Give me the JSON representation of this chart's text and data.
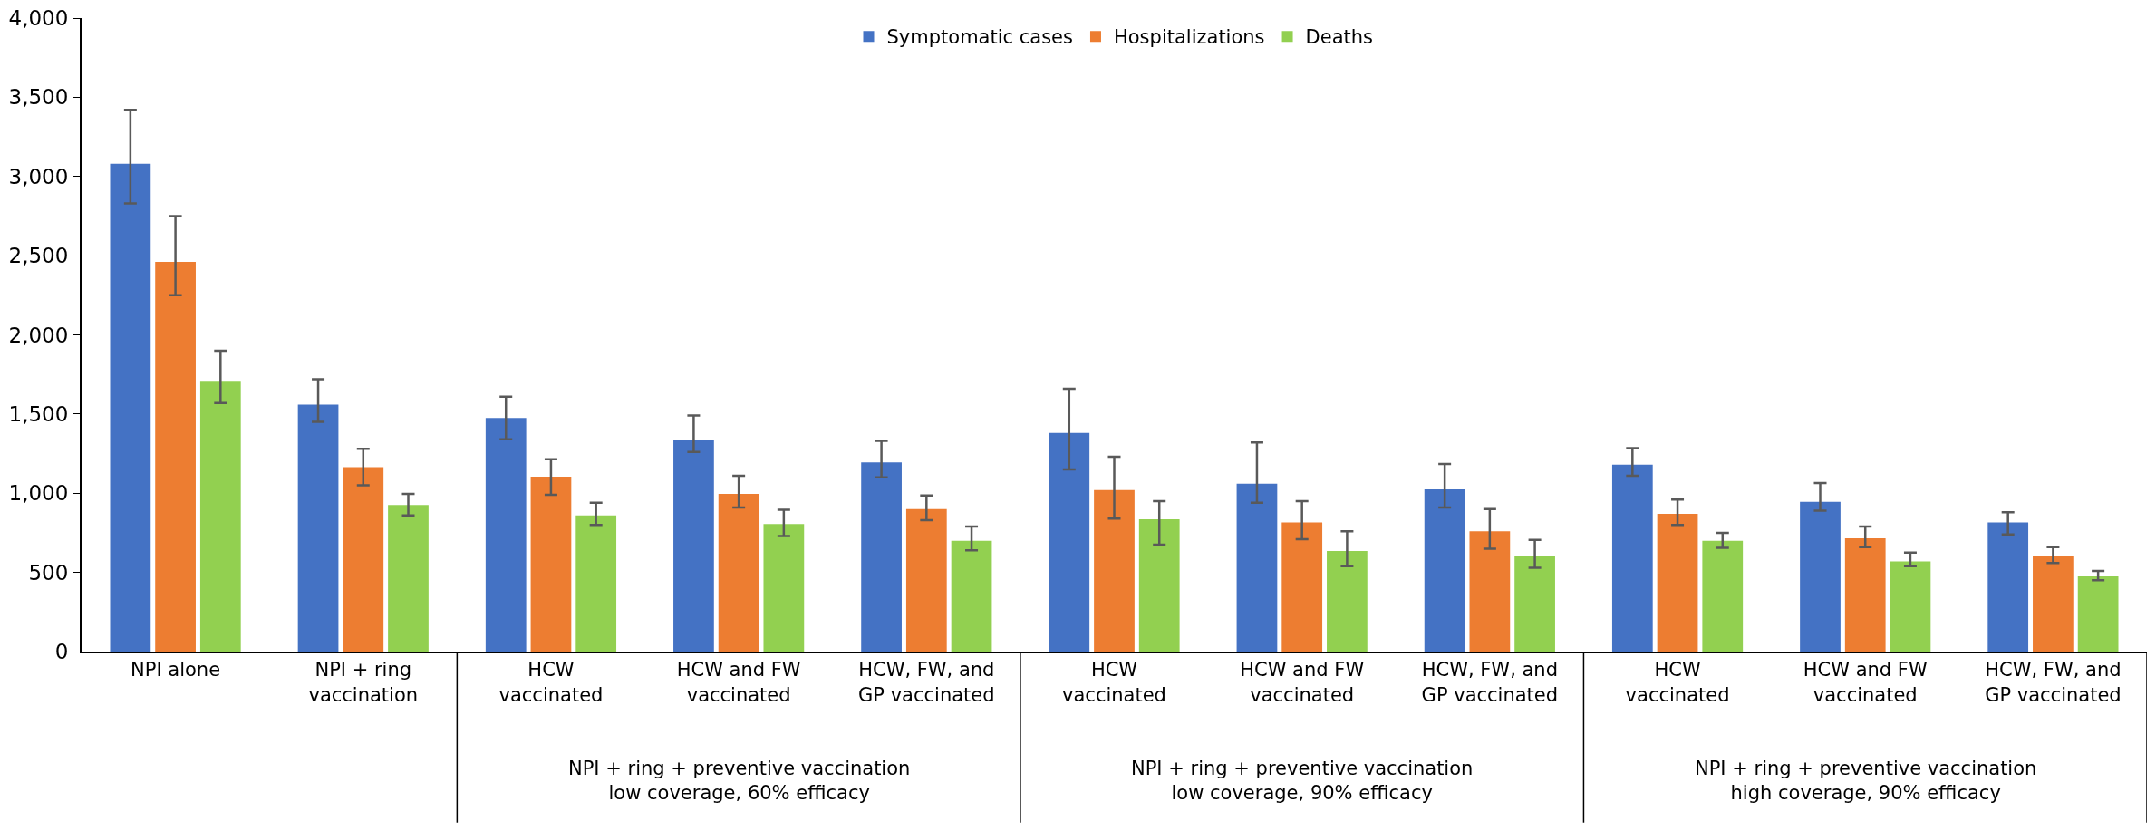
{
  "chart_data": {
    "type": "bar",
    "categories": [
      "NPI alone",
      "NPI + ring vaccination",
      "HCW vaccinated",
      "HCW and FW vaccinated",
      "HCW, FW, and GP vaccinated",
      "HCW vaccinated",
      "HCW and FW vaccinated",
      "HCW, FW, and GP vaccinated",
      "HCW vaccinated",
      "HCW and FW vaccinated",
      "HCW, FW, and GP vaccinated"
    ],
    "series": [
      {
        "name": "Symptomatic cases",
        "color": "#4472c4",
        "values": [
          3080,
          1560,
          1475,
          1335,
          1195,
          1380,
          1060,
          1025,
          1180,
          945,
          815
        ],
        "errors": [
          [
            2830,
            3420
          ],
          [
            1450,
            1720
          ],
          [
            1340,
            1610
          ],
          [
            1260,
            1490
          ],
          [
            1100,
            1330
          ],
          [
            1150,
            1660
          ],
          [
            940,
            1320
          ],
          [
            910,
            1185
          ],
          [
            1110,
            1285
          ],
          [
            890,
            1065
          ],
          [
            740,
            880
          ]
        ]
      },
      {
        "name": "Hospitalizations",
        "color": "#ed7d31",
        "values": [
          2460,
          1165,
          1105,
          995,
          900,
          1020,
          815,
          760,
          870,
          715,
          605
        ],
        "errors": [
          [
            2250,
            2750
          ],
          [
            1050,
            1280
          ],
          [
            990,
            1215
          ],
          [
            910,
            1110
          ],
          [
            830,
            985
          ],
          [
            840,
            1230
          ],
          [
            710,
            950
          ],
          [
            650,
            900
          ],
          [
            800,
            960
          ],
          [
            660,
            790
          ],
          [
            560,
            660
          ]
        ]
      },
      {
        "name": "Deaths",
        "color": "#92d050",
        "values": [
          1710,
          925,
          860,
          805,
          700,
          835,
          635,
          605,
          700,
          570,
          475
        ],
        "errors": [
          [
            1570,
            1900
          ],
          [
            860,
            995
          ],
          [
            800,
            940
          ],
          [
            730,
            895
          ],
          [
            640,
            790
          ],
          [
            675,
            950
          ],
          [
            540,
            760
          ],
          [
            530,
            705
          ],
          [
            655,
            750
          ],
          [
            540,
            625
          ],
          [
            450,
            510
          ]
        ]
      }
    ],
    "annotations": [
      "NPI + ring + preventive vaccination\nlow coverage, 60% efficacy",
      "NPI + ring + preventive vaccination\nlow coverage, 90% efficacy",
      "NPI + ring + preventive vaccination\nhigh coverage, 90% efficacy"
    ],
    "ylim": [
      0,
      4000
    ],
    "yticks": [
      0,
      500,
      {
        "value": 1000,
        "label": "1,000"
      },
      {
        "value": 1500,
        "label": "1,500"
      },
      {
        "value": 2000,
        "label": "2,000"
      },
      {
        "value": 2500,
        "label": "2,500"
      },
      {
        "value": 3000,
        "label": "3,000"
      },
      {
        "value": 3500,
        "label": "3,500"
      },
      {
        "value": 4000,
        "label": "4,000"
      }
    ],
    "grid": false,
    "legend": "top"
  }
}
